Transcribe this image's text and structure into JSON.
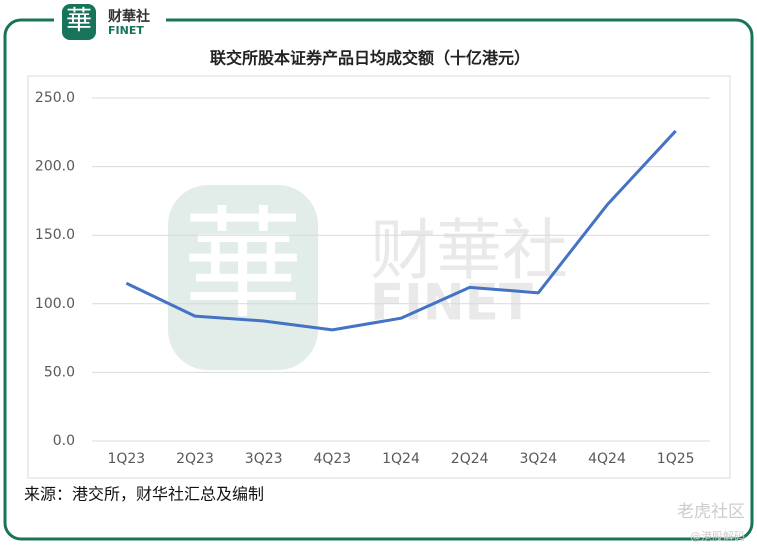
{
  "chart_data": {
    "type": "line",
    "title": "联交所股本证券产品日均成交额（十亿港元）",
    "categories": [
      "1Q23",
      "2Q23",
      "3Q23",
      "4Q23",
      "1Q24",
      "2Q24",
      "3Q24",
      "4Q24",
      "1Q25"
    ],
    "values": [
      115,
      91,
      87.5,
      81,
      89.5,
      112,
      108,
      172,
      226
    ],
    "color": "#4472c4",
    "ylim": [
      0,
      250
    ],
    "yticks": [
      {
        "value": 0,
        "label": "0.0"
      },
      {
        "value": 50,
        "label": "50.0"
      },
      {
        "value": 100,
        "label": "100.0"
      },
      {
        "value": 150,
        "label": "150.0"
      },
      {
        "value": 200,
        "label": "200.0"
      },
      {
        "value": 250,
        "label": "250.0"
      }
    ],
    "grid": true
  },
  "logo": {
    "mark": "華",
    "name": "财華社",
    "sub": "FINET"
  },
  "source": "来源：港交所，财华社汇总及编制",
  "watermark": {
    "name": "老虎社区",
    "handle": "@港股解码"
  }
}
